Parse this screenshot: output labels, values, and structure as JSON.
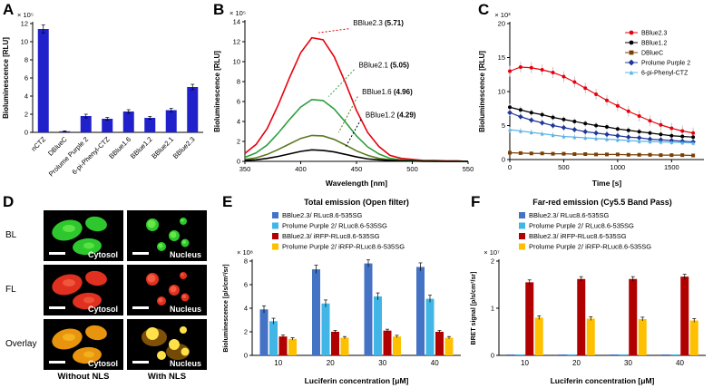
{
  "panels": {
    "a": {
      "letter": "A"
    },
    "b": {
      "letter": "B"
    },
    "c": {
      "letter": "C"
    },
    "d": {
      "letter": "D"
    },
    "e": {
      "letter": "E"
    },
    "f": {
      "letter": "F"
    }
  },
  "chart_data": [
    {
      "id": "A",
      "type": "bar",
      "ylabel": "Bioluminescence [RLU]",
      "y_scale_label": "× 10⁵",
      "categories": [
        "nCTZ",
        "DBlueC",
        "Prolume Purple 2",
        "6-pi-Phenyl-CTZ",
        "BBlue1.6",
        "BBlue1.2",
        "BBlue2.1",
        "BBlue2.3"
      ],
      "values": [
        11.4,
        0.12,
        1.8,
        1.5,
        2.3,
        1.6,
        2.45,
        5.0
      ],
      "errors": [
        0.45,
        0.05,
        0.2,
        0.15,
        0.2,
        0.15,
        0.2,
        0.3
      ],
      "ylim": [
        0,
        12
      ],
      "yticks": [
        0,
        2,
        4,
        6,
        8,
        10,
        12
      ],
      "bar_color": "#2121cc"
    },
    {
      "id": "B",
      "type": "line",
      "ylabel": "Bioluminescence [RLU]",
      "y_scale_label": "× 10⁵",
      "xlabel": "Wavelength [nm]",
      "xlim": [
        350,
        550
      ],
      "xticks": [
        350,
        400,
        450,
        500,
        550
      ],
      "ylim": [
        0,
        14
      ],
      "yticks": [
        0,
        2,
        4,
        6,
        8,
        10,
        12,
        14
      ],
      "x": [
        350,
        360,
        370,
        380,
        390,
        400,
        410,
        420,
        430,
        440,
        450,
        460,
        470,
        480,
        490,
        500,
        510,
        520,
        530,
        540,
        550
      ],
      "series": [
        {
          "name": "BBlue2.3",
          "color": "#e8000d",
          "values": [
            0.8,
            1.7,
            3.3,
            5.7,
            8.4,
            10.9,
            12.4,
            12.2,
            10.5,
            7.9,
            5.1,
            2.9,
            1.5,
            0.6,
            0.3,
            0.2,
            0.1,
            0.1,
            0.05,
            0.05,
            0.0
          ]
        },
        {
          "name": "BBlue2.1",
          "color": "#2e9e3e",
          "values": [
            0.4,
            0.85,
            1.65,
            2.85,
            4.2,
            5.45,
            6.2,
            6.1,
            5.25,
            3.95,
            2.55,
            1.45,
            0.75,
            0.3,
            0.15,
            0.1,
            0.05,
            0.05,
            0.0,
            0.0,
            0.0
          ]
        },
        {
          "name": "BBlue1.6",
          "color": "#5a7a1e",
          "values": [
            0.2,
            0.35,
            0.7,
            1.2,
            1.75,
            2.3,
            2.6,
            2.55,
            2.2,
            1.65,
            1.05,
            0.6,
            0.3,
            0.15,
            0.1,
            0.05,
            0.05,
            0.0,
            0.0,
            0.0,
            0.0
          ]
        },
        {
          "name": "BBlue1.2",
          "color": "#000000",
          "values": [
            0.1,
            0.15,
            0.3,
            0.5,
            0.75,
            1.0,
            1.15,
            1.1,
            0.95,
            0.7,
            0.45,
            0.25,
            0.15,
            0.1,
            0.05,
            0.05,
            0.0,
            0.0,
            0.0,
            0.0,
            0.0
          ]
        }
      ],
      "annotations": [
        {
          "label": "BBlue2.3",
          "value": "5.71",
          "color": "#e8000d",
          "tx": 447,
          "ty": 13.8,
          "x1": 443,
          "y1": 13.3,
          "x2": 416,
          "y2": 12.9
        },
        {
          "label": "BBlue2.1",
          "value": "5.05",
          "color": "#2e9e3e",
          "tx": 452,
          "ty": 9.6,
          "x1": 448,
          "y1": 9.2,
          "x2": 425,
          "y2": 6.5
        },
        {
          "label": "BBlue1.6",
          "value": "4.96",
          "color": "#5a7a1e",
          "tx": 455,
          "ty": 6.9,
          "x1": 451,
          "y1": 6.5,
          "x2": 434,
          "y2": 2.9
        },
        {
          "label": "BBlue1.2",
          "value": "4.29",
          "color": "#000000",
          "tx": 458,
          "ty": 4.6,
          "x1": 454,
          "y1": 4.2,
          "x2": 440,
          "y2": 1.4
        }
      ]
    },
    {
      "id": "C",
      "type": "line",
      "ylabel": "Bioluminescence [RLU]",
      "y_scale_label": "× 10³",
      "xlabel": "Time [s]",
      "xlim": [
        0,
        1800
      ],
      "xticks": [
        0,
        500,
        1000,
        1500
      ],
      "ylim": [
        0,
        20
      ],
      "yticks": [
        0,
        5,
        10,
        15,
        20
      ],
      "x": [
        0,
        100,
        200,
        300,
        400,
        500,
        600,
        700,
        800,
        900,
        1000,
        1100,
        1200,
        1300,
        1400,
        1500,
        1600,
        1700
      ],
      "series": [
        {
          "name": "BBlue2.3",
          "color": "#e8000d",
          "marker": "circle",
          "error": 0.8,
          "values": [
            13.0,
            13.6,
            13.5,
            13.2,
            12.8,
            12.2,
            11.4,
            10.5,
            9.6,
            8.7,
            7.9,
            7.1,
            6.4,
            5.7,
            5.1,
            4.6,
            4.2,
            3.9
          ]
        },
        {
          "name": "BBlue1.2",
          "color": "#000000",
          "marker": "circle",
          "error": 0.5,
          "values": [
            7.7,
            7.3,
            6.9,
            6.6,
            6.2,
            5.9,
            5.6,
            5.3,
            5.0,
            4.8,
            4.5,
            4.3,
            4.1,
            3.9,
            3.7,
            3.5,
            3.4,
            3.3
          ]
        },
        {
          "name": "DBlueC",
          "color": "#7b3f00",
          "marker": "square",
          "error": 0.15,
          "values": [
            1.0,
            0.95,
            0.9,
            0.9,
            0.85,
            0.85,
            0.8,
            0.8,
            0.75,
            0.75,
            0.75,
            0.7,
            0.7,
            0.7,
            0.65,
            0.65,
            0.65,
            0.6
          ]
        },
        {
          "name": "Prolume Purple 2",
          "color": "#1f3799",
          "marker": "diamond",
          "error": 0.5,
          "values": [
            6.9,
            6.3,
            5.8,
            5.4,
            5.0,
            4.7,
            4.4,
            4.1,
            3.9,
            3.7,
            3.5,
            3.3,
            3.2,
            3.0,
            2.9,
            2.8,
            2.7,
            2.6
          ]
        },
        {
          "name": "6-pi-Phenyl-CTZ",
          "color": "#5ab4e8",
          "marker": "triangle",
          "error": 0.4,
          "values": [
            4.4,
            4.2,
            4.0,
            3.8,
            3.6,
            3.4,
            3.3,
            3.2,
            3.1,
            3.0,
            2.9,
            2.8,
            2.7,
            2.65,
            2.6,
            2.55,
            2.5,
            2.45
          ]
        }
      ]
    },
    {
      "id": "E",
      "type": "bar",
      "title": "Total emission  (Open filter)",
      "ylabel": "Bioluminescence [p/s/cm²/sr]",
      "y_scale_label": "× 10⁸",
      "xlabel": "Luciferin concentration [μM]",
      "categories": [
        "10",
        "20",
        "30",
        "40"
      ],
      "ylim": [
        0,
        8
      ],
      "yticks": [
        0,
        2,
        4,
        6,
        8
      ],
      "series": [
        {
          "name": "BBlue2.3/ RLuc8.6-535SG",
          "color": "#4472c4",
          "values": [
            3.9,
            7.3,
            7.8,
            7.5
          ],
          "errors": [
            0.3,
            0.35,
            0.3,
            0.35
          ]
        },
        {
          "name": "Prolume Purple 2/ RLuc8.6-535SG",
          "color": "#41b6e6",
          "values": [
            2.9,
            4.4,
            5.0,
            4.8
          ],
          "errors": [
            0.25,
            0.3,
            0.3,
            0.3
          ]
        },
        {
          "name": "BBlue2.3/ iRFP-RLuc8.6-535SG",
          "color": "#b00000",
          "values": [
            1.6,
            2.0,
            2.1,
            2.0
          ],
          "errors": [
            0.12,
            0.12,
            0.12,
            0.12
          ]
        },
        {
          "name": "Prolume Purple 2/ iRFP-RLuc8.6-535SG",
          "color": "#ffc000",
          "values": [
            1.4,
            1.5,
            1.6,
            1.5
          ],
          "errors": [
            0.1,
            0.1,
            0.1,
            0.1
          ]
        }
      ]
    },
    {
      "id": "F",
      "type": "bar",
      "title": "Far-red emission (Cy5.5 Band Pass)",
      "ylabel": "BRET signal [p/s/cm²/sr]",
      "y_scale_label": "× 10⁷",
      "xlabel": "Luciferin concentration [μM]",
      "categories": [
        "10",
        "20",
        "30",
        "40"
      ],
      "ylim": [
        0,
        2
      ],
      "yticks": [
        0,
        1,
        2
      ],
      "series": [
        {
          "name": "BBlue2.3/ RLuc8.6-535SG",
          "color": "#4472c4",
          "values": [
            0.02,
            0.02,
            0.02,
            0.02
          ],
          "errors": [
            0,
            0,
            0,
            0
          ]
        },
        {
          "name": "Prolume Purple 2/ RLuc8.6-535SG",
          "color": "#41b6e6",
          "values": [
            0.02,
            0.02,
            0.02,
            0.02
          ],
          "errors": [
            0,
            0,
            0,
            0
          ]
        },
        {
          "name": "BBlue2.3/ iRFP-RLuc8.6-535SG",
          "color": "#b00000",
          "values": [
            1.55,
            1.62,
            1.62,
            1.67
          ],
          "errors": [
            0.05,
            0.05,
            0.05,
            0.05
          ]
        },
        {
          "name": "Prolume Purple 2/ iRFP-RLuc8.6-535SG",
          "color": "#ffc000",
          "values": [
            0.8,
            0.78,
            0.77,
            0.74
          ],
          "errors": [
            0.04,
            0.04,
            0.04,
            0.04
          ]
        }
      ]
    }
  ],
  "microscopy": {
    "row_labels": [
      "BL",
      "FL",
      "Overlay"
    ],
    "col_labels": [
      "Without NLS",
      "With NLS"
    ],
    "tiles": [
      {
        "row": 0,
        "col": 0,
        "label": "Cytosol",
        "color": "#2ec82e",
        "accent": "#8cff5a"
      },
      {
        "row": 0,
        "col": 1,
        "label": "Nucleus",
        "color": "#2ec82e",
        "accent": "#8cff5a"
      },
      {
        "row": 1,
        "col": 0,
        "label": "Cytosol",
        "color": "#e03020",
        "accent": "#ff7a5a"
      },
      {
        "row": 1,
        "col": 1,
        "label": "Nucleus",
        "color": "#e03020",
        "accent": "#ff7a5a"
      },
      {
        "row": 2,
        "col": 0,
        "label": "Cytosol",
        "color": "#e8940e",
        "accent": "#ffd22e"
      },
      {
        "row": 2,
        "col": 1,
        "label": "Nucleus",
        "color": "#e8940e",
        "accent": "#ffe14a"
      }
    ]
  }
}
